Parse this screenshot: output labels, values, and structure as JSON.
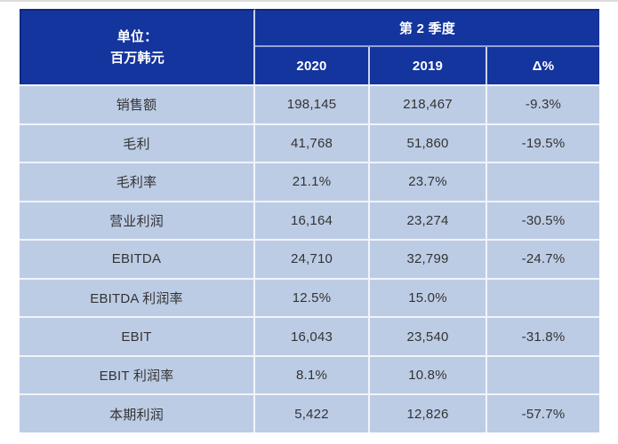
{
  "colors": {
    "header_blue": "#14349e",
    "row_light_blue": "#bdcce5",
    "header_text": "#ffffff",
    "body_text": "#333333",
    "divider": "#ffffff"
  },
  "header": {
    "unit_line1": "单位：",
    "unit_line2": "百万韩元",
    "quarter_label": "第 2 季度"
  },
  "chart_data": {
    "type": "table",
    "title": "第 2 季度",
    "unit": "单位：百万韩元",
    "columns": [
      "2020",
      "2019",
      "Δ%"
    ],
    "rows": [
      {
        "label": "销售额",
        "values": [
          "198,145",
          "218,467",
          "-9.3%"
        ]
      },
      {
        "label": "毛利",
        "values": [
          "41,768",
          "51,860",
          "-19.5%"
        ]
      },
      {
        "label": "毛利率",
        "values": [
          "21.1%",
          "23.7%",
          ""
        ]
      },
      {
        "label": "营业利润",
        "values": [
          "16,164",
          "23,274",
          "-30.5%"
        ]
      },
      {
        "label": "EBITDA",
        "values": [
          "24,710",
          "32,799",
          "-24.7%"
        ]
      },
      {
        "label": "EBITDA 利润率",
        "values": [
          "12.5%",
          "15.0%",
          ""
        ]
      },
      {
        "label": "EBIT",
        "values": [
          "16,043",
          "23,540",
          "-31.8%"
        ]
      },
      {
        "label": "EBIT 利润率",
        "values": [
          "8.1%",
          "10.8%",
          ""
        ]
      },
      {
        "label": "本期利润",
        "values": [
          "5,422",
          "12,826",
          "-57.7%"
        ]
      }
    ]
  }
}
